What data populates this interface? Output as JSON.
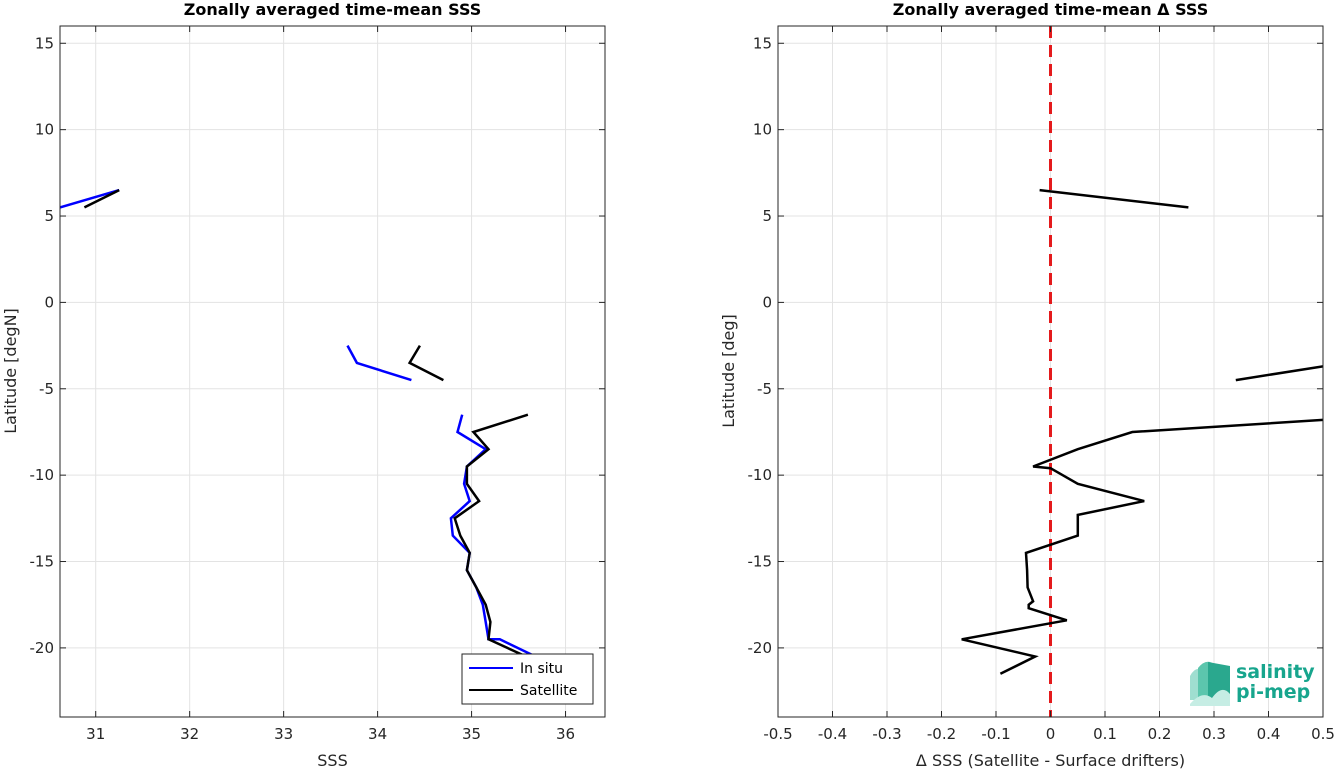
{
  "chart_data": [
    {
      "type": "line",
      "title": "Zonally averaged time-mean SSS",
      "xlabel": "SSS",
      "ylabel": "Latitude [degN]",
      "xlim": [
        30.62,
        36.42
      ],
      "ylim": [
        -24,
        16
      ],
      "xticks": [
        31,
        32,
        33,
        34,
        35,
        36
      ],
      "yticks": [
        -20,
        -15,
        -10,
        -5,
        0,
        5,
        10,
        15
      ],
      "grid": true,
      "legend": "bottom-right",
      "series": [
        {
          "name": "In situ",
          "color": "#0000ff",
          "segments": [
            [
              [
                30.62,
                5.5
              ],
              [
                31.25,
                6.5
              ]
            ],
            [
              [
                33.68,
                -2.5
              ],
              [
                33.78,
                -3.5
              ],
              [
                34.36,
                -4.5
              ]
            ],
            [
              [
                34.9,
                -6.5
              ],
              [
                34.85,
                -7.5
              ],
              [
                35.15,
                -8.5
              ],
              [
                34.95,
                -9.5
              ],
              [
                34.92,
                -10.5
              ],
              [
                34.98,
                -11.5
              ],
              [
                34.78,
                -12.5
              ],
              [
                34.8,
                -13.5
              ],
              [
                34.98,
                -14.5
              ],
              [
                34.95,
                -15.5
              ],
              [
                35.05,
                -16.5
              ],
              [
                35.12,
                -17.5
              ],
              [
                35.15,
                -18.5
              ],
              [
                35.18,
                -19.5
              ],
              [
                35.3,
                -19.5
              ],
              [
                35.68,
                -20.5
              ]
            ]
          ]
        },
        {
          "name": "Satellite",
          "color": "#000000",
          "segments": [
            [
              [
                30.88,
                5.5
              ],
              [
                31.25,
                6.5
              ]
            ],
            [
              [
                34.45,
                -2.5
              ],
              [
                34.34,
                -3.5
              ],
              [
                34.7,
                -4.5
              ]
            ],
            [
              [
                35.6,
                -6.5
              ],
              [
                35.02,
                -7.5
              ],
              [
                35.18,
                -8.5
              ],
              [
                34.95,
                -9.5
              ],
              [
                34.95,
                -10.5
              ],
              [
                35.08,
                -11.5
              ],
              [
                34.82,
                -12.5
              ],
              [
                34.88,
                -13.5
              ],
              [
                34.98,
                -14.5
              ],
              [
                34.95,
                -15.5
              ],
              [
                35.05,
                -16.5
              ],
              [
                35.15,
                -17.5
              ],
              [
                35.2,
                -18.5
              ],
              [
                35.18,
                -19.5
              ],
              [
                35.58,
                -20.5
              ]
            ]
          ]
        }
      ]
    },
    {
      "type": "line",
      "title": "Zonally averaged time-mean Δ SSS",
      "xlabel": "Δ SSS (Satellite - Surface drifters)",
      "ylabel": "Latitude [deg]",
      "xlim": [
        -0.5,
        0.5
      ],
      "ylim": [
        -24,
        16
      ],
      "xticks": [
        -0.5,
        -0.4,
        -0.3,
        -0.2,
        -0.1,
        0,
        0.1,
        0.2,
        0.3,
        0.4,
        0.5
      ],
      "yticks": [
        -20,
        -15,
        -10,
        -5,
        0,
        5,
        10,
        15
      ],
      "grid": true,
      "reference_line": {
        "x": 0,
        "color": "#e41a1c",
        "style": "dashed"
      },
      "series": [
        {
          "color": "#000000",
          "segments": [
            [
              [
                -0.02,
                6.5
              ],
              [
                0.253,
                5.5
              ]
            ],
            [
              [
                0.34,
                -4.5
              ],
              [
                0.5,
                -3.7
              ]
            ],
            [
              [
                0.5,
                -6.8
              ],
              [
                0.15,
                -7.5
              ],
              [
                0.05,
                -8.5
              ],
              [
                -0.032,
                -9.5
              ],
              [
                0.0,
                -9.6
              ],
              [
                0.05,
                -10.5
              ],
              [
                0.172,
                -11.5
              ],
              [
                0.05,
                -12.3
              ],
              [
                0.05,
                -13.5
              ],
              [
                -0.045,
                -14.5
              ],
              [
                -0.043,
                -15.5
              ],
              [
                -0.042,
                -16.5
              ],
              [
                -0.032,
                -17.3
              ],
              [
                -0.04,
                -17.5
              ],
              [
                -0.04,
                -17.7
              ],
              [
                0.03,
                -18.4
              ],
              [
                -0.163,
                -19.5
              ],
              [
                -0.028,
                -20.5
              ],
              [
                -0.092,
                -21.5
              ]
            ]
          ]
        }
      ]
    }
  ],
  "legend": {
    "items": [
      "In situ",
      "Satellite"
    ]
  },
  "logo": {
    "line1": "salinity",
    "line2": "pi-mep"
  }
}
